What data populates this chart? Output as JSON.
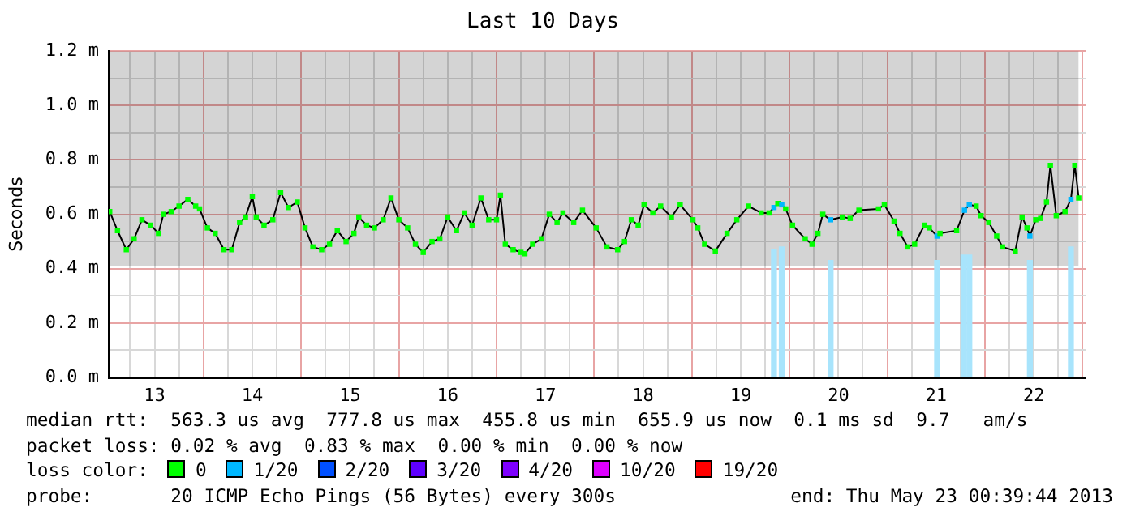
{
  "chart_data": {
    "type": "line",
    "title": "Last 10 Days",
    "ylabel": "Seconds",
    "legend_title": "loss color:",
    "legend": "bottom",
    "grid": true,
    "marker": "square",
    "line_style": "solid",
    "xlim": [
      13.03,
      23.03
    ],
    "ylim": [
      0,
      1.2
    ],
    "xticks": [
      {
        "value": 13.25,
        "label": null
      },
      {
        "value": 13.5,
        "label": "13"
      },
      {
        "value": 13.75,
        "label": null
      },
      {
        "value": 14,
        "label": null
      },
      {
        "value": 14.25,
        "label": null
      },
      {
        "value": 14.5,
        "label": "14"
      },
      {
        "value": 14.75,
        "label": null
      },
      {
        "value": 15,
        "label": null
      },
      {
        "value": 15.25,
        "label": null
      },
      {
        "value": 15.5,
        "label": "15"
      },
      {
        "value": 15.75,
        "label": null
      },
      {
        "value": 16,
        "label": null
      },
      {
        "value": 16.25,
        "label": null
      },
      {
        "value": 16.5,
        "label": "16"
      },
      {
        "value": 16.75,
        "label": null
      },
      {
        "value": 17,
        "label": null
      },
      {
        "value": 17.25,
        "label": null
      },
      {
        "value": 17.5,
        "label": "17"
      },
      {
        "value": 17.75,
        "label": null
      },
      {
        "value": 18,
        "label": null
      },
      {
        "value": 18.25,
        "label": null
      },
      {
        "value": 18.5,
        "label": "18"
      },
      {
        "value": 18.75,
        "label": null
      },
      {
        "value": 19,
        "label": null
      },
      {
        "value": 19.25,
        "label": null
      },
      {
        "value": 19.5,
        "label": "19"
      },
      {
        "value": 19.75,
        "label": null
      },
      {
        "value": 20,
        "label": null
      },
      {
        "value": 20.25,
        "label": null
      },
      {
        "value": 20.5,
        "label": "20"
      },
      {
        "value": 20.75,
        "label": null
      },
      {
        "value": 21,
        "label": null
      },
      {
        "value": 21.25,
        "label": null
      },
      {
        "value": 21.5,
        "label": "21"
      },
      {
        "value": 21.75,
        "label": null
      },
      {
        "value": 22,
        "label": null
      },
      {
        "value": 22.25,
        "label": null
      },
      {
        "value": 22.5,
        "label": "22"
      },
      {
        "value": 22.75,
        "label": null
      },
      {
        "value": 23,
        "label": null
      }
    ],
    "yticks": [
      {
        "value": 0,
        "label": "0.0 m"
      },
      {
        "value": 0.1,
        "label": null
      },
      {
        "value": 0.2,
        "label": "0.2 m"
      },
      {
        "value": 0.3,
        "label": null
      },
      {
        "value": 0.4,
        "label": "0.4 m"
      },
      {
        "value": 0.5,
        "label": null
      },
      {
        "value": 0.6,
        "label": "0.6 m"
      },
      {
        "value": 0.7,
        "label": null
      },
      {
        "value": 0.8,
        "label": "0.8 m"
      },
      {
        "value": 0.9,
        "label": null
      },
      {
        "value": 1.0,
        "label": "1.0 m"
      },
      {
        "value": 1.1,
        "label": null
      },
      {
        "value": 1.2,
        "label": "1.2 m"
      }
    ],
    "series": [
      {
        "type": "bar",
        "color": "#a8e4fc",
        "x": [
          19.84,
          19.92,
          20.42,
          21.51,
          21.78,
          21.84,
          22.46,
          22.88
        ],
        "values": [
          0.47,
          0.48,
          0.43,
          0.43,
          0.45,
          0.45,
          0.43,
          0.48
        ]
      },
      {
        "color": "#000000",
        "x": [
          13.04,
          13.12,
          13.21,
          13.29,
          13.37,
          13.46,
          13.54,
          13.59,
          13.67,
          13.75,
          13.84,
          13.92,
          13.96,
          14.04,
          14.12,
          14.21,
          14.29,
          14.37,
          14.43,
          14.5,
          14.54,
          14.62,
          14.71,
          14.79,
          14.87,
          14.96,
          15.04,
          15.12,
          15.21,
          15.29,
          15.37,
          15.46,
          15.54,
          15.59,
          15.67,
          15.75,
          15.84,
          15.92,
          16.0,
          16.09,
          16.17,
          16.25,
          16.34,
          16.42,
          16.5,
          16.59,
          16.67,
          16.75,
          16.84,
          16.92,
          17.0,
          17.04,
          17.09,
          17.17,
          17.25,
          17.29,
          17.37,
          17.46,
          17.54,
          17.62,
          17.68,
          17.79,
          17.88,
          18.02,
          18.13,
          18.24,
          18.31,
          18.38,
          18.45,
          18.51,
          18.6,
          18.68,
          18.79,
          18.88,
          19.01,
          19.06,
          19.13,
          19.24,
          19.36,
          19.46,
          19.58,
          19.71,
          19.79,
          19.84,
          19.88,
          19.92,
          19.96,
          20.03,
          20.16,
          20.23,
          20.29,
          20.34,
          20.42,
          20.54,
          20.62,
          20.71,
          20.91,
          20.97,
          21.07,
          21.13,
          21.21,
          21.28,
          21.38,
          21.43,
          21.51,
          21.54,
          21.71,
          21.79,
          21.84,
          21.91,
          21.96,
          22.04,
          22.12,
          22.18,
          22.31,
          22.38,
          22.43,
          22.46,
          22.52,
          22.57,
          22.63,
          22.67,
          22.73,
          22.82,
          22.88,
          22.92,
          22.96
        ],
        "values": [
          0.61,
          0.54,
          0.47,
          0.51,
          0.58,
          0.56,
          0.53,
          0.6,
          0.61,
          0.63,
          0.655,
          0.63,
          0.62,
          0.55,
          0.53,
          0.47,
          0.47,
          0.57,
          0.59,
          0.665,
          0.59,
          0.56,
          0.58,
          0.68,
          0.625,
          0.645,
          0.55,
          0.48,
          0.47,
          0.49,
          0.54,
          0.5,
          0.53,
          0.59,
          0.56,
          0.55,
          0.58,
          0.66,
          0.58,
          0.55,
          0.49,
          0.46,
          0.5,
          0.51,
          0.59,
          0.54,
          0.605,
          0.56,
          0.66,
          0.58,
          0.58,
          0.67,
          0.49,
          0.47,
          0.46,
          0.455,
          0.49,
          0.51,
          0.6,
          0.57,
          0.605,
          0.57,
          0.615,
          0.55,
          0.48,
          0.47,
          0.5,
          0.58,
          0.56,
          0.635,
          0.605,
          0.63,
          0.59,
          0.635,
          0.58,
          0.55,
          0.49,
          0.465,
          0.53,
          0.58,
          0.63,
          0.605,
          0.605,
          0.625,
          0.64,
          0.635,
          0.62,
          0.56,
          0.51,
          0.49,
          0.53,
          0.6,
          0.58,
          0.59,
          0.585,
          0.615,
          0.62,
          0.635,
          0.575,
          0.53,
          0.48,
          0.49,
          0.56,
          0.55,
          0.52,
          0.53,
          0.54,
          0.615,
          0.635,
          0.63,
          0.595,
          0.57,
          0.52,
          0.48,
          0.465,
          0.59,
          0.55,
          0.52,
          0.58,
          0.585,
          0.645,
          0.78,
          0.595,
          0.61,
          0.655,
          0.78,
          0.66
        ],
        "colors": [
          "#00ff00",
          "#00ff00",
          "#00ff00",
          "#00ff00",
          "#00ff00",
          "#00ff00",
          "#00ff00",
          "#00ff00",
          "#00ff00",
          "#00ff00",
          "#00ff00",
          "#00ff00",
          "#00ff00",
          "#00ff00",
          "#00ff00",
          "#00ff00",
          "#00ff00",
          "#00ff00",
          "#00ff00",
          "#00ff00",
          "#00ff00",
          "#00ff00",
          "#00ff00",
          "#00ff00",
          "#00ff00",
          "#00ff00",
          "#00ff00",
          "#00ff00",
          "#00ff00",
          "#00ff00",
          "#00ff00",
          "#00ff00",
          "#00ff00",
          "#00ff00",
          "#00ff00",
          "#00ff00",
          "#00ff00",
          "#00ff00",
          "#00ff00",
          "#00ff00",
          "#00ff00",
          "#00ff00",
          "#00ff00",
          "#00ff00",
          "#00ff00",
          "#00ff00",
          "#00ff00",
          "#00ff00",
          "#00ff00",
          "#00ff00",
          "#00ff00",
          "#00ff00",
          "#00ff00",
          "#00ff00",
          "#00ff00",
          "#00ff00",
          "#00ff00",
          "#00ff00",
          "#00ff00",
          "#00ff00",
          "#00ff00",
          "#00ff00",
          "#00ff00",
          "#00ff00",
          "#00ff00",
          "#00ff00",
          "#00ff00",
          "#00ff00",
          "#00ff00",
          "#00ff00",
          "#00ff00",
          "#00ff00",
          "#00ff00",
          "#00ff00",
          "#00ff00",
          "#00ff00",
          "#00ff00",
          "#00ff00",
          "#00ff00",
          "#00ff00",
          "#00ff00",
          "#00ff00",
          "#00ff00",
          "#00b8ff",
          "#00ff00",
          "#00b8ff",
          "#00ff00",
          "#00ff00",
          "#00ff00",
          "#00ff00",
          "#00ff00",
          "#00ff00",
          "#00b8ff",
          "#00ff00",
          "#00ff00",
          "#00ff00",
          "#00ff00",
          "#00ff00",
          "#00ff00",
          "#00ff00",
          "#00ff00",
          "#00ff00",
          "#00ff00",
          "#00ff00",
          "#00b8ff",
          "#00ff00",
          "#00ff00",
          "#00b8ff",
          "#00b8ff",
          "#00ff00",
          "#00ff00",
          "#00ff00",
          "#00ff00",
          "#00ff00",
          "#00ff00",
          "#00ff00",
          "#00ff00",
          "#00b8ff",
          "#00ff00",
          "#00ff00",
          "#00ff00",
          "#00ff00",
          "#00ff00",
          "#00ff00",
          "#00b8ff",
          "#00ff00",
          "#00ff00"
        ],
        "lower": [
          0.41,
          0.41,
          0.41,
          0.41,
          0.41,
          0.41,
          0.41,
          0.41,
          0.41,
          0.41,
          0.41,
          0.41,
          0.41,
          0.41,
          0.41,
          0.41,
          0.41,
          0.41,
          0.41,
          0.41,
          0.41,
          0.41,
          0.41,
          0.41,
          0.41,
          0.41,
          0.41,
          0.41,
          0.41,
          0.41,
          0.41,
          0.41,
          0.41,
          0.41,
          0.41,
          0.41,
          0.41,
          0.41,
          0.41,
          0.41,
          0.41,
          0.41,
          0.41,
          0.41,
          0.41,
          0.41,
          0.41,
          0.41,
          0.41,
          0.41,
          0.41,
          0.41,
          0.41,
          0.41,
          0.41,
          0.41,
          0.41,
          0.41,
          0.41,
          0.41,
          0.41,
          0.41,
          0.41,
          0.41,
          0.41,
          0.41,
          0.41,
          0.41,
          0.41,
          0.41,
          0.41,
          0.41,
          0.41,
          0.41,
          0.41,
          0.41,
          0.41,
          0.41,
          0.41,
          0.41,
          0.41,
          0.41,
          0.41,
          0.41,
          0.41,
          0.41,
          0.41,
          0.41,
          0.41,
          0.41,
          0.41,
          0.41,
          0.41,
          0.41,
          0.41,
          0.41,
          0.41,
          0.41,
          0.41,
          0.41,
          0.41,
          0.41,
          0.41,
          0.41,
          0.41,
          0.41,
          0.41,
          0.41,
          0.41,
          0.41,
          0.41,
          0.41,
          0.41,
          0.41,
          0.41,
          0.41,
          0.41,
          0.41,
          0.41,
          0.41,
          0.41,
          0.41,
          0.41,
          0.41,
          0.41,
          0.41,
          0.41
        ],
        "upper": [
          1.2,
          1.2,
          1.2,
          1.2,
          1.2,
          1.2,
          1.2,
          1.2,
          1.2,
          1.2,
          1.2,
          1.2,
          1.2,
          1.2,
          1.2,
          1.2,
          1.2,
          1.2,
          1.2,
          1.2,
          1.2,
          1.2,
          1.2,
          1.2,
          1.2,
          1.2,
          1.2,
          1.2,
          1.2,
          1.2,
          1.2,
          1.2,
          1.2,
          1.2,
          1.2,
          1.2,
          1.2,
          1.2,
          1.2,
          1.2,
          1.2,
          1.2,
          1.2,
          1.2,
          1.2,
          1.2,
          1.2,
          1.2,
          1.2,
          1.2,
          1.2,
          1.2,
          1.2,
          1.2,
          1.2,
          1.2,
          1.2,
          1.2,
          1.2,
          1.2,
          1.2,
          1.2,
          1.2,
          1.2,
          1.2,
          1.2,
          1.2,
          1.2,
          1.2,
          1.2,
          1.2,
          1.2,
          1.2,
          1.2,
          1.2,
          1.2,
          1.2,
          1.2,
          1.2,
          1.2,
          1.2,
          1.2,
          1.2,
          1.2,
          1.2,
          1.2,
          1.2,
          1.2,
          1.2,
          1.2,
          1.2,
          1.2,
          1.2,
          1.2,
          1.2,
          1.2,
          1.2,
          1.2,
          1.2,
          1.2,
          1.2,
          1.2,
          1.2,
          1.2,
          1.2,
          1.2,
          1.2,
          1.2,
          1.2,
          1.2,
          1.2,
          1.2,
          1.2,
          1.2,
          1.2,
          1.2,
          1.2,
          1.2,
          1.2,
          1.2,
          1.2,
          1.2,
          1.2,
          1.2,
          1.2,
          1.2,
          1.2
        ]
      },
      {
        "type": "scatter",
        "name": "0",
        "color": "#00ff00"
      },
      {
        "type": "scatter",
        "name": "1/20",
        "color": "#00b8ff"
      },
      {
        "type": "scatter",
        "name": "2/20",
        "color": "#0050ff"
      },
      {
        "type": "scatter",
        "name": "3/20",
        "color": "#5e00ff"
      },
      {
        "type": "scatter",
        "name": "4/20",
        "color": "#7e00ff"
      },
      {
        "type": "scatter",
        "name": "10/20",
        "color": "#dd00ff"
      },
      {
        "type": "scatter",
        "name": "19/20",
        "color": "#ff0000"
      }
    ],
    "annotations": [
      "median rtt:  563.3 us avg  777.8 us max  455.8 us min  655.9 us now  0.1 ms sd  9.7   am/s",
      "packet loss: 0.02 % avg  0.83 % max  0.00 % min  0.00 % now",
      "probe:       20 ICMP Echo Pings (56 Bytes) every 300s",
      "end: Thu May 23 00:39:44 2013"
    ]
  }
}
